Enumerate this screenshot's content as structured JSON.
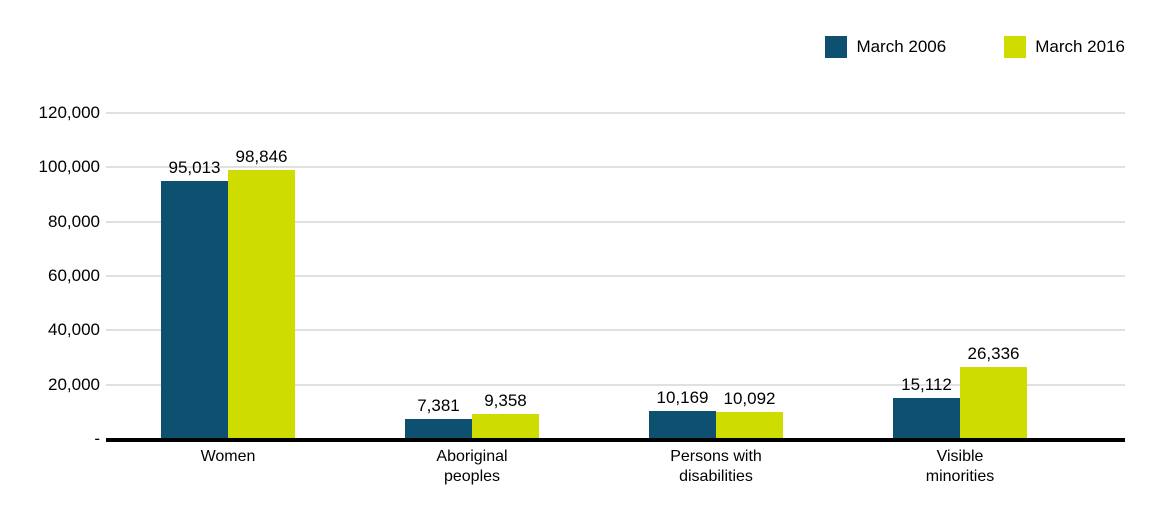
{
  "chart_data": {
    "type": "bar",
    "title": "",
    "categories": [
      "Women",
      "Aboriginal\npeoples",
      "Persons with\ndisabilities",
      "Visible\nminorities"
    ],
    "series": [
      {
        "name": "March 2006",
        "color": "#0d506f",
        "values": [
          95013,
          7381,
          10169,
          15112
        ]
      },
      {
        "name": "March 2016",
        "color": "#cedc00",
        "values": [
          98846,
          9358,
          10092,
          26336
        ]
      }
    ],
    "value_labels": {
      "march_2006": [
        "95,013",
        "7,381",
        "10,169",
        "15,112"
      ],
      "march_2016": [
        "98,846",
        "9,358",
        "10,092",
        "26,336"
      ]
    },
    "xlabel": "",
    "ylabel": "",
    "ylim": [
      0,
      120000
    ],
    "ytick_step": 20000,
    "ytick_labels": [
      "-",
      "20,000",
      "40,000",
      "60,000",
      "80,000",
      "100,000",
      "120,000"
    ],
    "grid": true,
    "gridline_color": "#e0e0e0",
    "axis_color": "#000000",
    "legend_position": "top-right"
  }
}
